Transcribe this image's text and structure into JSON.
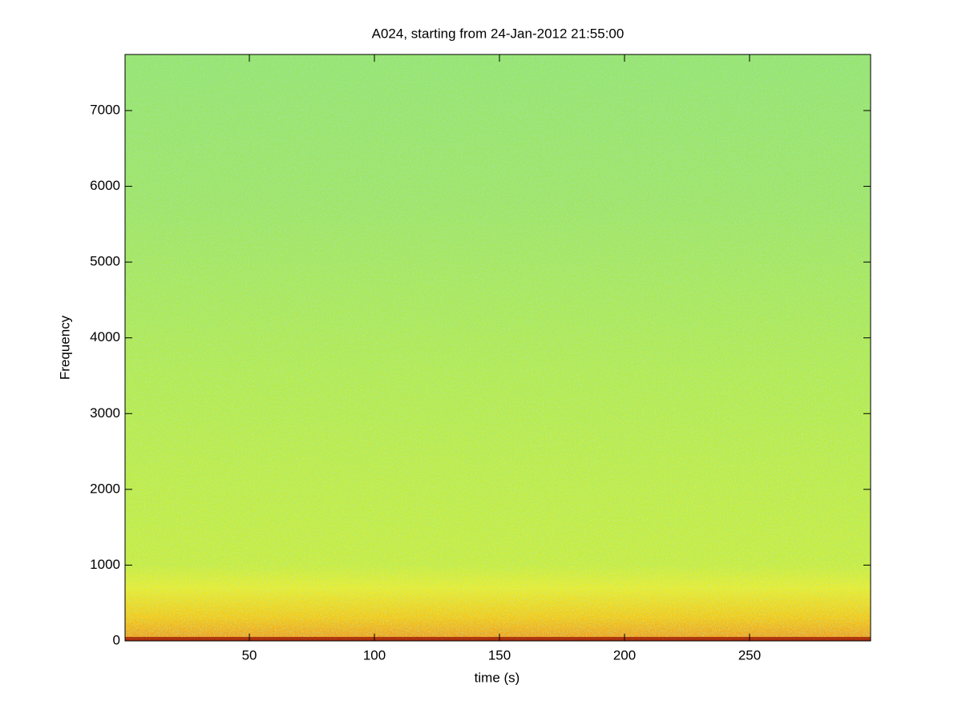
{
  "chart_data": {
    "type": "spectrogram",
    "title": "A024, starting from 24-Jan-2012 21:55:00",
    "x_label": "time (s)",
    "y_label": "Frequency",
    "xlim": [
      0.3,
      298.4
    ],
    "xticks": [
      50,
      100,
      150,
      200,
      250
    ],
    "ylim": [
      0,
      7740
    ],
    "yticks": [
      0,
      1000,
      2000,
      3000,
      4000,
      5000,
      6000,
      7000
    ]
  }
}
